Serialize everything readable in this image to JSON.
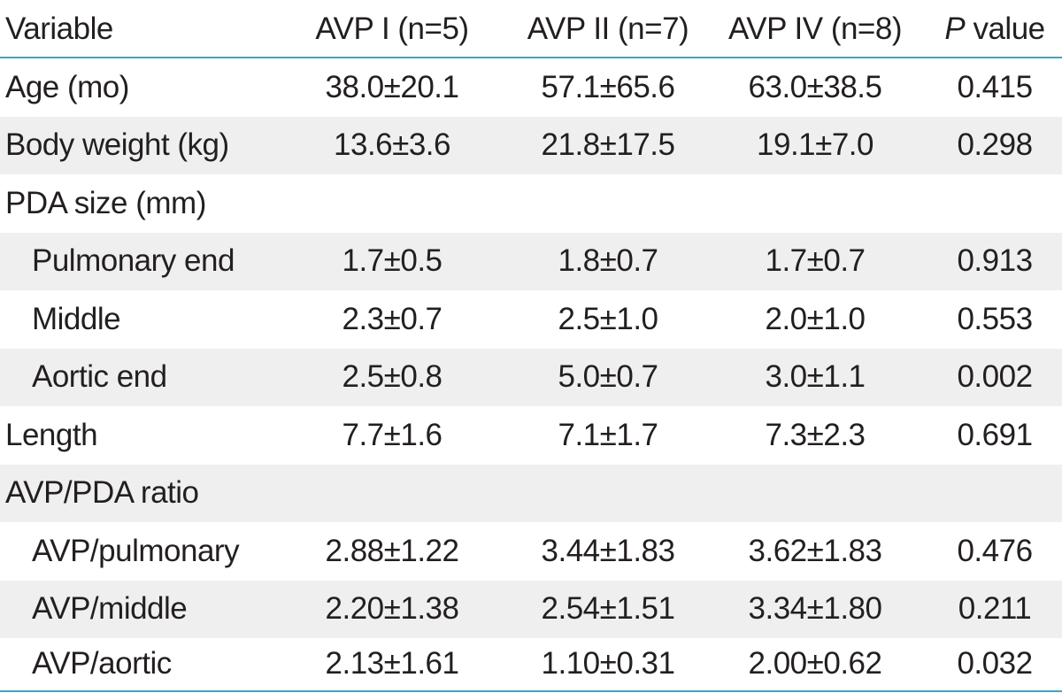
{
  "header": {
    "variable": "Variable",
    "col1": "AVP I (n=5)",
    "col2": "AVP II (n=7)",
    "col3": "AVP IV (n=8)",
    "col4_p": "P",
    "col4_rest": " value"
  },
  "rows": [
    {
      "label": "Age (mo)",
      "v1": "38.0±20.1",
      "v2": "57.1±65.6",
      "v3": "63.0±38.5",
      "p": "0.415"
    },
    {
      "label": "Body weight (kg)",
      "v1": "13.6±3.6",
      "v2": "21.8±17.5",
      "v3": "19.1±7.0",
      "p": "0.298"
    },
    {
      "label": "PDA size (mm)",
      "v1": "",
      "v2": "",
      "v3": "",
      "p": ""
    },
    {
      "label": "Pulmonary end",
      "v1": "1.7±0.5",
      "v2": "1.8±0.7",
      "v3": "1.7±0.7",
      "p": "0.913"
    },
    {
      "label": "Middle",
      "v1": "2.3±0.7",
      "v2": "2.5±1.0",
      "v3": "2.0±1.0",
      "p": "0.553"
    },
    {
      "label": "Aortic end",
      "v1": "2.5±0.8",
      "v2": "5.0±0.7",
      "v3": "3.0±1.1",
      "p": "0.002"
    },
    {
      "label": "Length",
      "v1": "7.7±1.6",
      "v2": "7.1±1.7",
      "v3": "7.3±2.3",
      "p": "0.691"
    },
    {
      "label": "AVP/PDA ratio",
      "v1": "",
      "v2": "",
      "v3": "",
      "p": ""
    },
    {
      "label": "AVP/pulmonary",
      "v1": "2.88±1.22",
      "v2": "3.44±1.83",
      "v3": "3.62±1.83",
      "p": "0.476"
    },
    {
      "label": "AVP/middle",
      "v1": "2.20±1.38",
      "v2": "2.54±1.51",
      "v3": "3.34±1.80",
      "p": "0.211"
    },
    {
      "label": "AVP/aortic",
      "v1": "2.13±1.61",
      "v2": "1.10±0.31",
      "v3": "2.00±0.62",
      "p": "0.032"
    }
  ],
  "colors": {
    "rule": "#3aa7c9",
    "stripe": "#efefef",
    "text": "#231f20"
  }
}
